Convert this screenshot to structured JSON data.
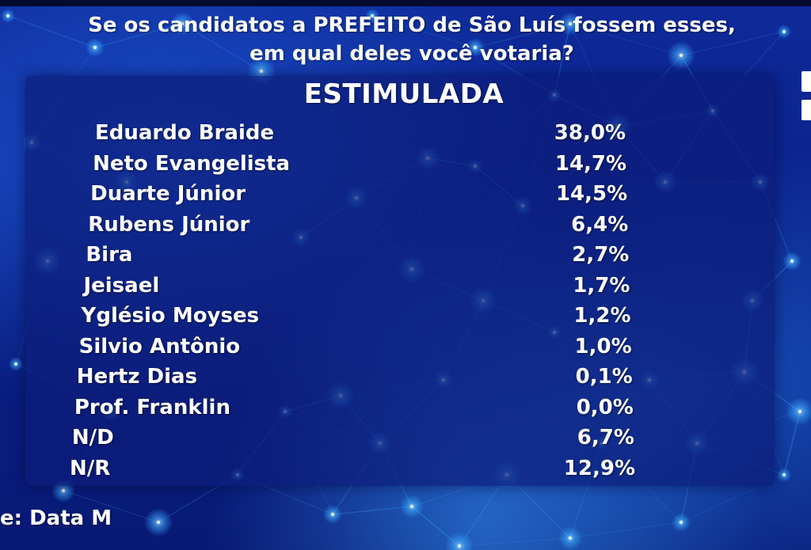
{
  "question": {
    "line1": "Se os candidatos a PREFEITO de São Luís fossem esses,",
    "line2": "em qual deles você votaria?"
  },
  "subtitle": "ESTIMULADA",
  "source": "e: Data M",
  "colors": {
    "background": "#0e2a9a",
    "panel": "#0c1c78",
    "text": "#ffffff",
    "network_glow": "#3aa8ff"
  },
  "chart_data": {
    "type": "table",
    "title": "Se os candidatos a PREFEITO de São Luís fossem esses, em qual deles você votaria?",
    "subtitle": "ESTIMULADA",
    "categories": [
      "Eduardo Braide",
      "Neto Evangelista",
      "Duarte Júnior",
      "Rubens Júnior",
      "Bira",
      "Jeisael",
      "Yglésio Moyses",
      "Silvio Antônio",
      "Hertz Dias",
      "Prof. Franklin",
      "N/D",
      "N/R"
    ],
    "values": [
      38.0,
      14.7,
      14.5,
      6.4,
      2.7,
      1.7,
      1.2,
      1.0,
      0.1,
      0.0,
      6.7,
      12.9
    ],
    "labels": [
      "38,0%",
      "14,7%",
      "14,5%",
      "6,4%",
      "2,7%",
      "1,7%",
      "1,2%",
      "1,0%",
      "0,1%",
      "0,0%",
      "6,7%",
      "12,9%"
    ],
    "unit": "%"
  }
}
